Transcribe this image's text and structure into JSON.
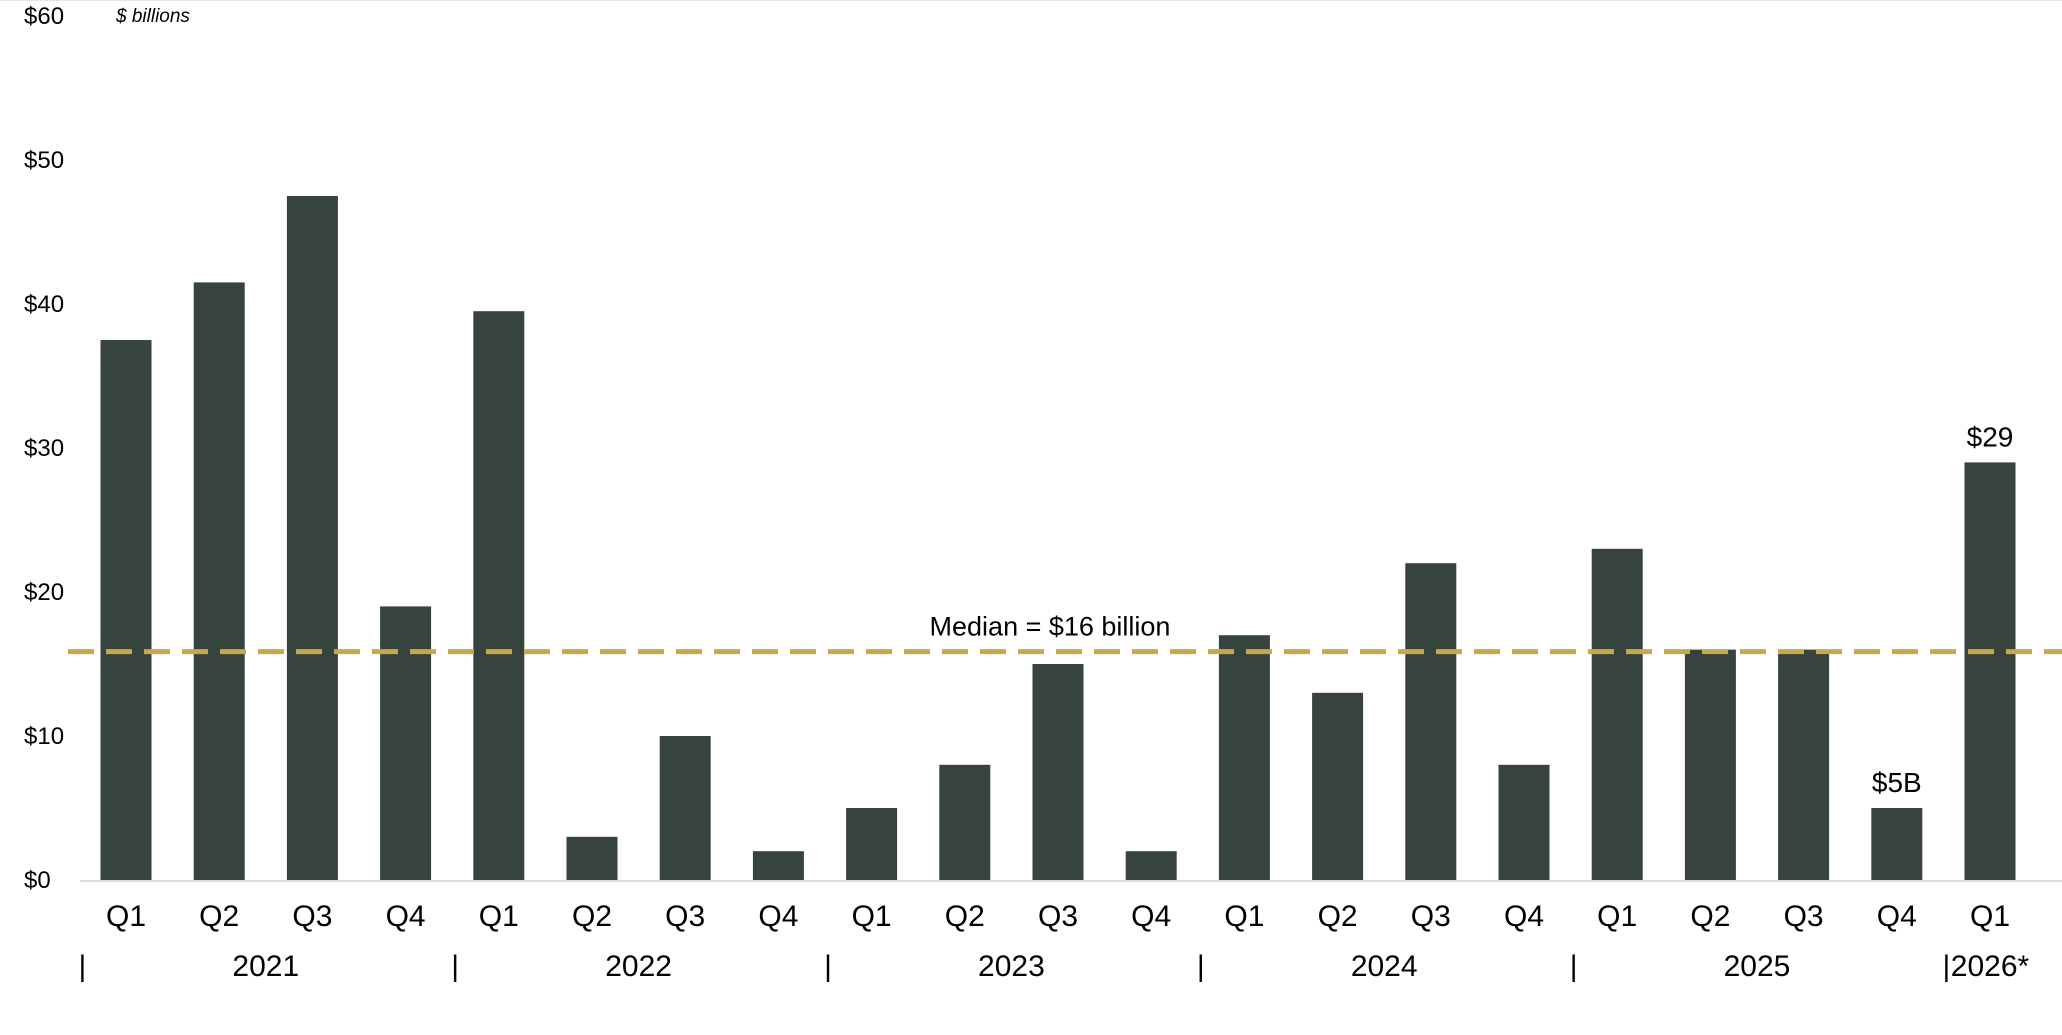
{
  "chart_data": {
    "type": "bar",
    "unit_label": "$ billions",
    "categories": [
      "Q1",
      "Q2",
      "Q3",
      "Q4",
      "Q1",
      "Q2",
      "Q3",
      "Q4",
      "Q1",
      "Q2",
      "Q3",
      "Q4",
      "Q1",
      "Q2",
      "Q3",
      "Q4",
      "Q1",
      "Q2",
      "Q3",
      "Q4",
      "Q1"
    ],
    "years": [
      {
        "label": "2021",
        "start": 0,
        "end": 3
      },
      {
        "label": "2022",
        "start": 4,
        "end": 7
      },
      {
        "label": "2023",
        "start": 8,
        "end": 11
      },
      {
        "label": "2024",
        "start": 12,
        "end": 15
      },
      {
        "label": "2025",
        "start": 16,
        "end": 19
      },
      {
        "label": "2026*",
        "start": 20,
        "end": 20
      }
    ],
    "values": [
      37.5,
      41.5,
      47.5,
      19,
      39.5,
      3,
      10,
      2,
      5,
      8,
      15,
      2,
      17,
      13,
      22,
      8,
      23,
      16,
      16,
      5,
      29
    ],
    "ylim": [
      0,
      60
    ],
    "yticks": [
      {
        "value": 0,
        "label": "$0"
      },
      {
        "value": 10,
        "label": "$10"
      },
      {
        "value": 20,
        "label": "$20"
      },
      {
        "value": 30,
        "label": "$30"
      },
      {
        "value": 40,
        "label": "$40"
      },
      {
        "value": 50,
        "label": "$50"
      },
      {
        "value": 60,
        "label": "$60"
      }
    ],
    "data_labels": [
      {
        "index": 19,
        "text": "$5B"
      },
      {
        "index": 20,
        "text": "$29"
      }
    ],
    "median": {
      "value": 16,
      "label": "Median = $16 billion"
    },
    "year_separator": "|",
    "colors": {
      "bar": "#37443e",
      "median": "#c9a84c",
      "axis": "#d9d9d9"
    },
    "grid": false
  }
}
